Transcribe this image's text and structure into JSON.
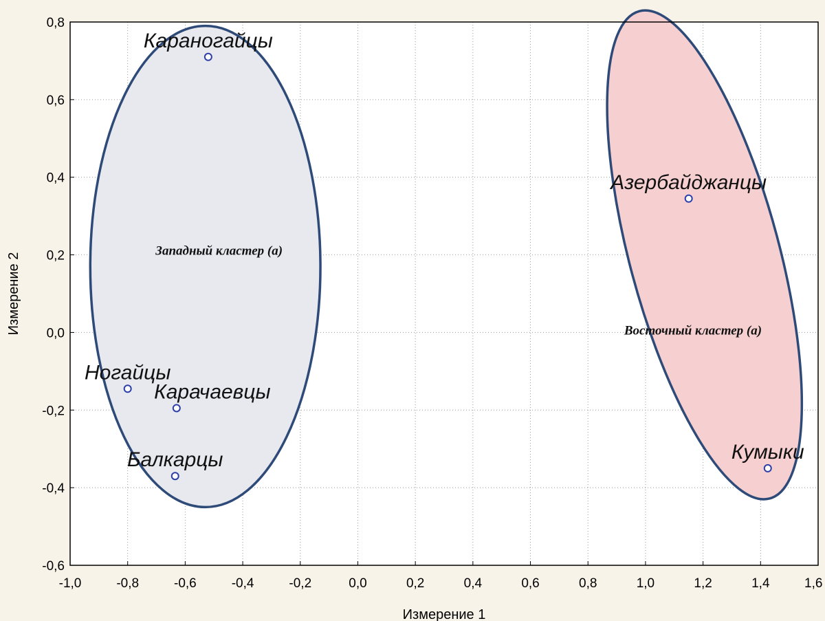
{
  "chart_data": {
    "type": "scatter",
    "xlabel": "Измерение 1",
    "ylabel": "Измерение 2",
    "xlim": [
      -1.0,
      1.6
    ],
    "ylim": [
      -0.6,
      0.8
    ],
    "x_ticks": [
      "-1,0",
      "-0,8",
      "-0,6",
      "-0,4",
      "-0,2",
      "0,0",
      "0,2",
      "0,4",
      "0,6",
      "0,8",
      "1,0",
      "1,2",
      "1,4",
      "1,6"
    ],
    "y_ticks": [
      "0,8",
      "0,6",
      "0,4",
      "0,2",
      "0,0",
      "-0,2",
      "-0,4",
      "-0,6"
    ],
    "grid": true,
    "points": [
      {
        "label": "Караногайцы",
        "x": -0.52,
        "y": 0.71
      },
      {
        "label": "Ногайцы",
        "x": -0.8,
        "y": -0.145
      },
      {
        "label": "Карачаевцы",
        "x": -0.63,
        "y": -0.195
      },
      {
        "label": "Балкарцы",
        "x": -0.635,
        "y": -0.37
      },
      {
        "label": "Азербайджанцы",
        "x": 1.15,
        "y": 0.345
      },
      {
        "label": "Кумыки",
        "x": 1.425,
        "y": -0.35
      }
    ],
    "clusters": [
      {
        "name": "Западный кластер (а)",
        "fill": "#e8e9ef",
        "stroke": "#2e4a78",
        "center": [
          -0.53,
          0.17
        ],
        "radii": [
          0.4,
          0.62
        ],
        "angle": 0,
        "members": [
          "Караногайцы",
          "Ногайцы",
          "Карачаевцы",
          "Балкарцы"
        ]
      },
      {
        "name": "Восточный кластер (а)",
        "fill": "#f6cfd0",
        "stroke": "#2e4a78",
        "center": [
          1.205,
          0.2
        ],
        "radii": [
          0.26,
          0.65
        ],
        "angle": -15,
        "members": [
          "Азербайджанцы",
          "Кумыки"
        ]
      }
    ],
    "colors": {
      "point": "#2c3fa8",
      "ellipse_stroke": "#2e4a78",
      "plot_bg": "#ffffff",
      "page_bg": "#f7f3e9"
    }
  }
}
